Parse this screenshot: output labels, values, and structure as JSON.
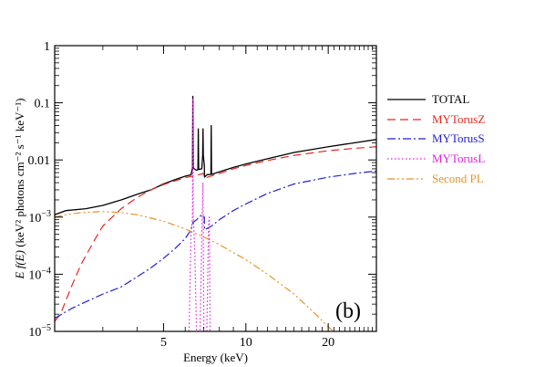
{
  "chart_data": {
    "type": "line",
    "xlabel": "Energy (keV)",
    "ylabel": "E f(E) (keV² photons cm⁻² s⁻¹ keV⁻¹)",
    "x_scale": "log",
    "y_scale": "log",
    "xlim": [
      2,
      30
    ],
    "ylim": [
      1e-05,
      1
    ],
    "x_ticks": [
      5,
      10,
      20
    ],
    "x_tick_labels": [
      "5",
      "10",
      "20"
    ],
    "y_ticks": [
      1e-05,
      0.0001,
      0.001,
      0.01,
      0.1,
      1
    ],
    "y_tick_labels": [
      {
        "base": "10",
        "exp": "−5"
      },
      {
        "base": "10",
        "exp": "−4"
      },
      {
        "base": "10",
        "exp": "−3"
      },
      {
        "text": "0.01"
      },
      {
        "text": "0.1"
      },
      {
        "text": "1"
      }
    ],
    "panel_label": "(b)",
    "legend_position": "right",
    "series": [
      {
        "name": "TOTAL",
        "color": "#000000",
        "style": "solid",
        "points": [
          [
            2.0,
            0.0011
          ],
          [
            2.2,
            0.0013
          ],
          [
            2.6,
            0.0014
          ],
          [
            3.0,
            0.0016
          ],
          [
            3.5,
            0.002
          ],
          [
            4.0,
            0.0025
          ],
          [
            4.5,
            0.003
          ],
          [
            5.0,
            0.0038
          ],
          [
            5.5,
            0.0045
          ],
          [
            6.0,
            0.0052
          ],
          [
            6.3,
            0.0055
          ],
          [
            6.38,
            0.0072
          ],
          [
            6.4,
            0.13
          ],
          [
            6.42,
            0.0072
          ],
          [
            6.6,
            0.0066
          ],
          [
            6.68,
            0.0068
          ],
          [
            6.7,
            0.035
          ],
          [
            6.72,
            0.0068
          ],
          [
            6.9,
            0.007
          ],
          [
            6.95,
            0.012
          ],
          [
            6.97,
            0.035
          ],
          [
            6.99,
            0.012
          ],
          [
            7.05,
            0.008
          ],
          [
            7.06,
            0.005
          ],
          [
            7.2,
            0.0055
          ],
          [
            7.45,
            0.0056
          ],
          [
            7.47,
            0.04
          ],
          [
            7.49,
            0.0056
          ],
          [
            8.0,
            0.0062
          ],
          [
            9.0,
            0.0074
          ],
          [
            10.0,
            0.0085
          ],
          [
            12.0,
            0.0105
          ],
          [
            15.0,
            0.0135
          ],
          [
            20.0,
            0.017
          ],
          [
            25.0,
            0.02
          ],
          [
            30.0,
            0.0228
          ]
        ]
      },
      {
        "name": "MYTorusZ",
        "color": "#e8271e",
        "style": "dashed",
        "points": [
          [
            2.0,
            1.5e-05
          ],
          [
            2.1,
            2e-05
          ],
          [
            2.3,
            6e-05
          ],
          [
            2.5,
            0.00015
          ],
          [
            2.8,
            0.0004
          ],
          [
            3.0,
            0.0007
          ],
          [
            3.5,
            0.0014
          ],
          [
            4.0,
            0.0022
          ],
          [
            4.5,
            0.003
          ],
          [
            5.0,
            0.0037
          ],
          [
            5.5,
            0.0043
          ],
          [
            6.0,
            0.0049
          ],
          [
            6.5,
            0.0053
          ],
          [
            7.0,
            0.0058
          ],
          [
            7.06,
            0.0048
          ],
          [
            8.0,
            0.0058
          ],
          [
            9.0,
            0.007
          ],
          [
            10.0,
            0.008
          ],
          [
            12.0,
            0.0098
          ],
          [
            15.0,
            0.012
          ],
          [
            20.0,
            0.0145
          ],
          [
            25.0,
            0.016
          ],
          [
            30.0,
            0.017
          ]
        ]
      },
      {
        "name": "MYTorusS",
        "color": "#2121d6",
        "style": "dashdot",
        "points": [
          [
            2.0,
            1.7e-05
          ],
          [
            2.3,
            2.5e-05
          ],
          [
            2.6,
            3.3e-05
          ],
          [
            3.0,
            4.5e-05
          ],
          [
            3.5,
            6e-05
          ],
          [
            4.0,
            9e-05
          ],
          [
            4.5,
            0.00013
          ],
          [
            5.0,
            0.00019
          ],
          [
            5.5,
            0.00028
          ],
          [
            6.0,
            0.00042
          ],
          [
            6.3,
            0.0006
          ],
          [
            6.4,
            0.0008
          ],
          [
            6.6,
            0.0009
          ],
          [
            6.9,
            0.0011
          ],
          [
            7.05,
            0.001
          ],
          [
            7.06,
            0.0006
          ],
          [
            7.5,
            0.0007
          ],
          [
            8.0,
            0.0009
          ],
          [
            9.0,
            0.0013
          ],
          [
            10.0,
            0.0017
          ],
          [
            12.0,
            0.0026
          ],
          [
            15.0,
            0.0038
          ],
          [
            20.0,
            0.005
          ],
          [
            25.0,
            0.0058
          ],
          [
            30.0,
            0.0064
          ]
        ]
      },
      {
        "name": "MYTorusL",
        "color": "#e020e0",
        "style": "dotted",
        "points": [
          [
            6.2,
            1e-05
          ],
          [
            6.3,
            0.0005
          ],
          [
            6.38,
            0.001
          ],
          [
            6.4,
            0.12
          ],
          [
            6.42,
            0.001
          ],
          [
            6.5,
            0.0003
          ],
          [
            6.6,
            1e-05
          ],
          [
            6.8,
            1e-05
          ],
          [
            6.92,
            0.001
          ],
          [
            6.97,
            0.004
          ],
          [
            7.02,
            1e-05
          ],
          [
            7.2,
            1e-05
          ],
          [
            7.3,
            0.0007
          ],
          [
            7.35,
            0.001
          ],
          [
            7.4,
            1e-05
          ]
        ]
      },
      {
        "name": "Second PL",
        "color": "#e8922a",
        "style": "dashdotdot",
        "points": [
          [
            2.0,
            0.001
          ],
          [
            2.2,
            0.0011
          ],
          [
            2.5,
            0.0012
          ],
          [
            3.0,
            0.00125
          ],
          [
            3.5,
            0.0012
          ],
          [
            4.0,
            0.0011
          ],
          [
            5.0,
            0.00085
          ],
          [
            6.0,
            0.00062
          ],
          [
            7.0,
            0.00045
          ],
          [
            8.0,
            0.00033
          ],
          [
            10.0,
            0.00018
          ],
          [
            12.0,
            0.0001
          ],
          [
            15.0,
            4.5e-05
          ],
          [
            18.0,
            2e-05
          ],
          [
            20.0,
            1.2e-05
          ],
          [
            21.0,
            1e-05
          ]
        ]
      }
    ]
  }
}
